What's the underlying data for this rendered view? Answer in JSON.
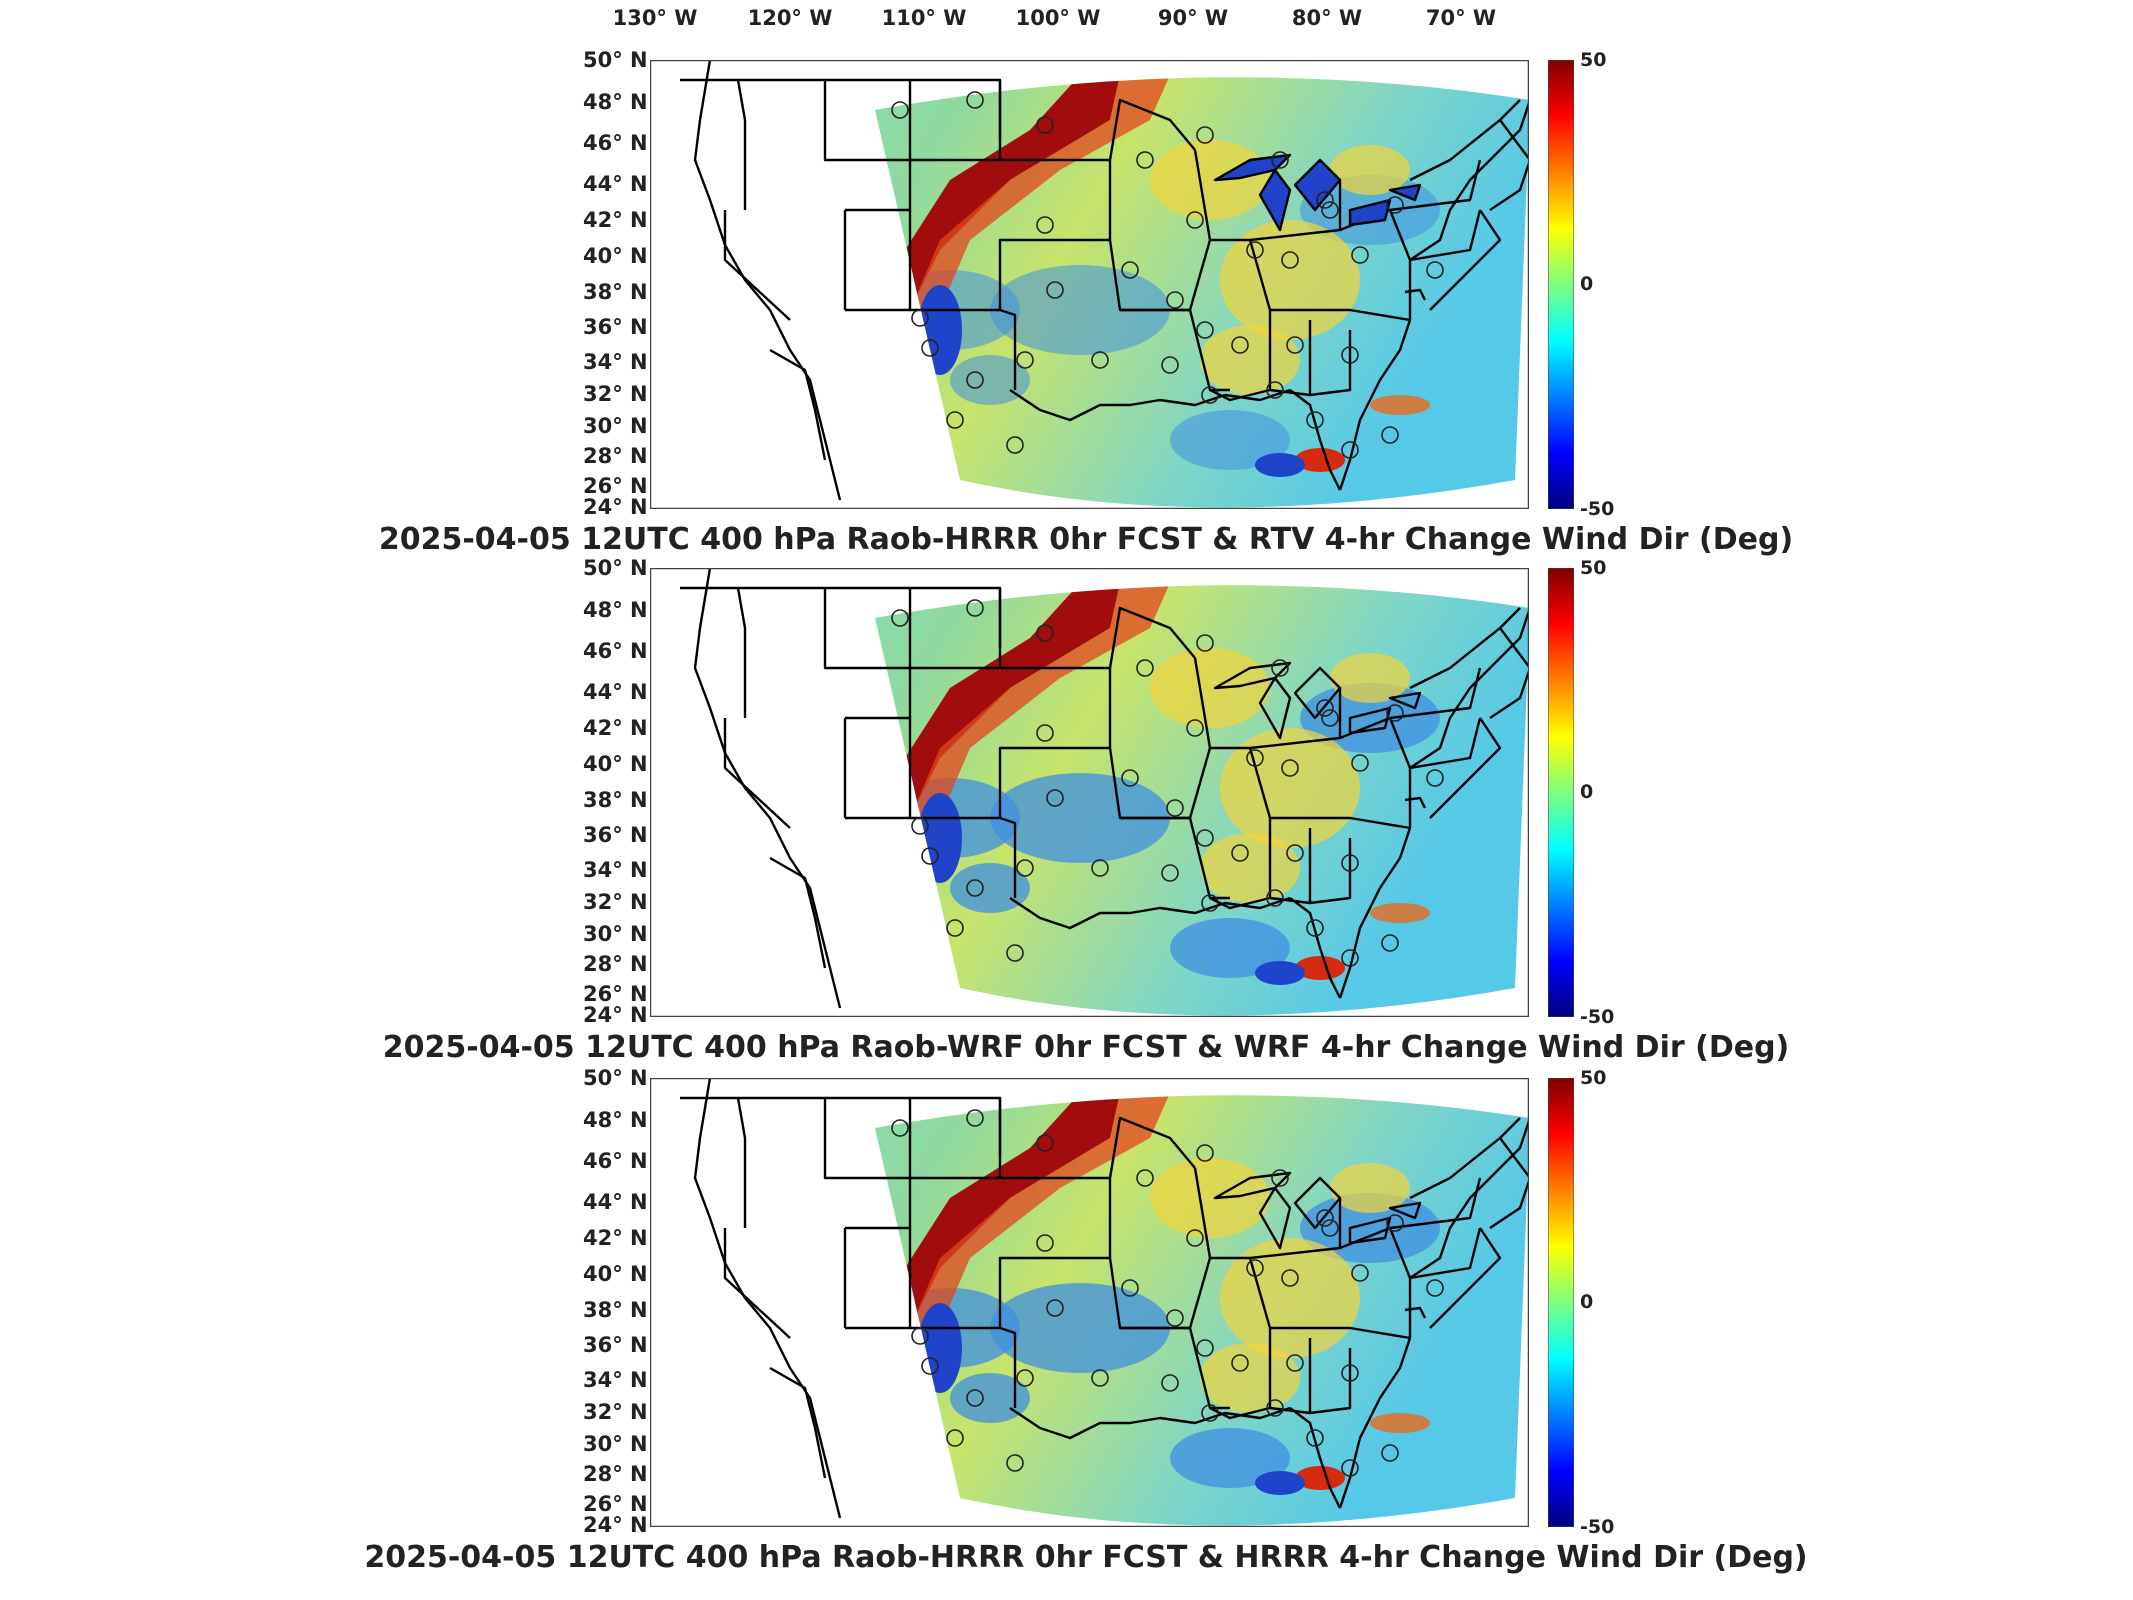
{
  "longitude_labels": [
    "130° W",
    "120° W",
    "110° W",
    "100° W",
    "90° W",
    "80° W",
    "70° W"
  ],
  "latitude_labels": [
    "50° N",
    "48° N",
    "46° N",
    "44° N",
    "42° N",
    "40° N",
    "38° N",
    "36° N",
    "34° N",
    "32° N",
    "30° N",
    "28° N",
    "26° N",
    "24° N"
  ],
  "colorbar": {
    "max_label": "50",
    "mid_label": "0",
    "min_label": "-50",
    "range": [
      -50,
      50
    ]
  },
  "panels": [
    {
      "caption": "2025-04-05 12UTC 400 hPa Raob-HRRR 0hr FCST & RTV 4-hr Change Wind Dir (Deg)"
    },
    {
      "caption": "2025-04-05 12UTC 400 hPa Raob-WRF 0hr FCST & WRF 4-hr Change Wind Dir (Deg)"
    },
    {
      "caption": "2025-04-05 12UTC 400 hPa Raob-HRRR 0hr FCST & HRRR 4-hr Change Wind Dir (Deg)"
    }
  ],
  "colors": {
    "field_base": "#78d2b2",
    "band": "#a10d0d",
    "trough": "#1f43c9"
  }
}
